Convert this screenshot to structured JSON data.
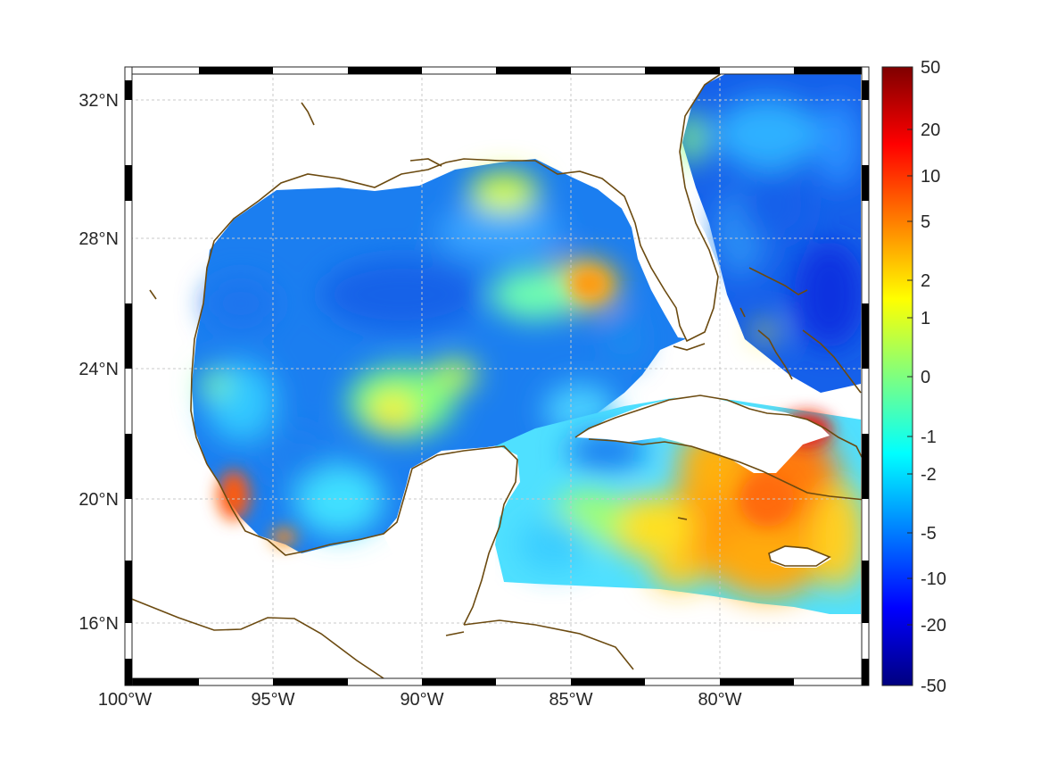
{
  "map": {
    "lon_ticks": [
      "100°W",
      "95°W",
      "90°W",
      "85°W",
      "80°W"
    ],
    "lat_ticks": [
      "32°N",
      "28°N",
      "24°N",
      "20°N",
      "16°N"
    ],
    "lon_range": [
      -100,
      -75.3
    ],
    "lat_range": [
      14.3,
      32.9
    ],
    "grid": true,
    "frame_style": "alternating black/white graticule border"
  },
  "colorbar": {
    "position": "right",
    "tick_labels": [
      "50",
      "20",
      "10",
      "5",
      "2",
      "1",
      "0",
      "-1",
      "-2",
      "-5",
      "-10",
      "-20",
      "-50"
    ],
    "colormap": "jet",
    "colors": [
      "#00007f",
      "#0000ff",
      "#007fff",
      "#00ffff",
      "#7fff7f",
      "#ffff00",
      "#ff7f00",
      "#ff0000",
      "#7f0000"
    ]
  },
  "colors": {
    "coast": "#6b4a10",
    "grid": "#c8c8c8",
    "land": "#ffffff"
  }
}
